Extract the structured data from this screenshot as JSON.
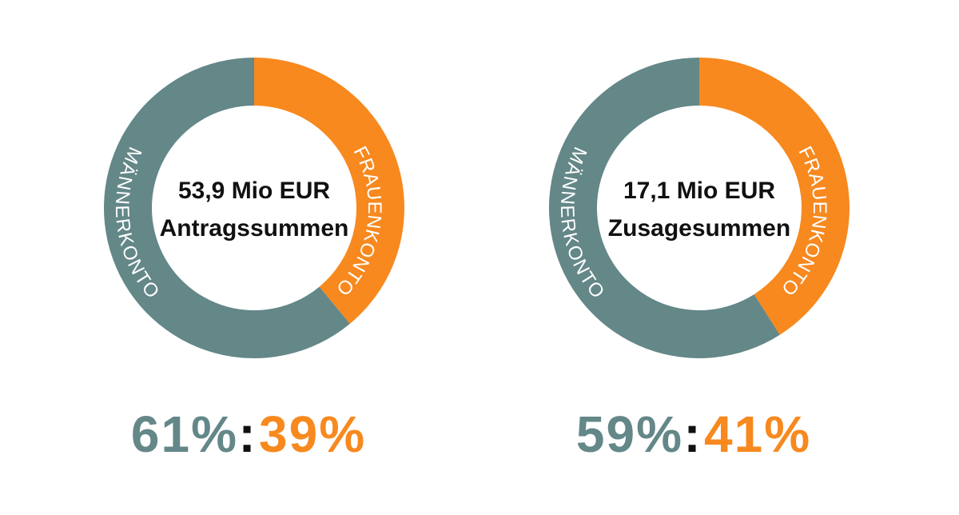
{
  "chart_data": [
    {
      "type": "donut",
      "title": "53,9 Mio EUR",
      "subtitle": "Antragssummen",
      "categories": [
        "MÄNNERKONTO",
        "FRAUENKONTO"
      ],
      "values": [
        61,
        39
      ],
      "value_labels": [
        "61%",
        "39%"
      ],
      "colors": [
        "#648788",
        "#f7891f"
      ],
      "separator": ":"
    },
    {
      "type": "donut",
      "title": "17,1 Mio EUR",
      "subtitle": "Zusagesummen",
      "categories": [
        "MÄNNERKONTO",
        "FRAUENKONTO"
      ],
      "values": [
        59,
        41
      ],
      "value_labels": [
        "59%",
        "41%"
      ],
      "colors": [
        "#648788",
        "#f7891f"
      ],
      "separator": ":"
    }
  ]
}
